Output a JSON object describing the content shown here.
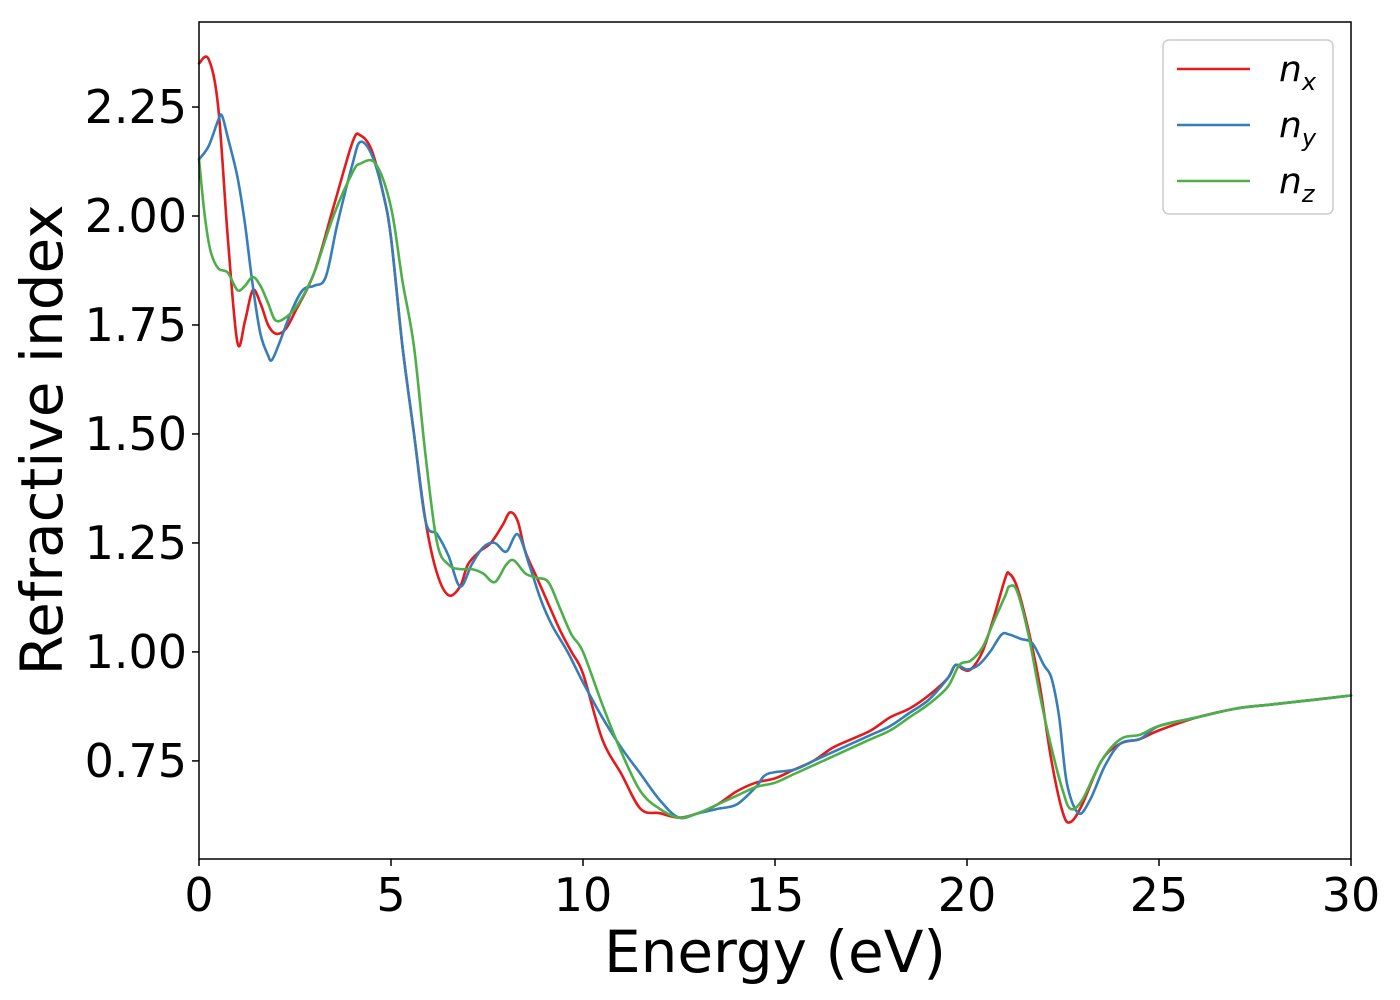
{
  "chart_data": {
    "type": "line",
    "xlabel": "Energy (eV)",
    "ylabel": "Refractive index",
    "xlim": [
      0,
      30
    ],
    "ylim": [
      0.525,
      2.445
    ],
    "xticks": [
      0,
      5,
      10,
      15,
      20,
      25,
      30
    ],
    "xtick_labels": [
      "0",
      "5",
      "10",
      "15",
      "20",
      "25",
      "30"
    ],
    "yticks": [
      0.75,
      1.0,
      1.25,
      1.5,
      1.75,
      2.0,
      2.25
    ],
    "ytick_labels": [
      "0.75",
      "1.00",
      "1.25",
      "1.50",
      "1.75",
      "2.00",
      "2.25"
    ],
    "grid": false,
    "legend_position": "top-right",
    "series": [
      {
        "name": "n",
        "subscript": "x",
        "color": "#e41a1c",
        "x": [
          0,
          0.25,
          0.5,
          0.75,
          1.0,
          1.2,
          1.4,
          1.6,
          1.8,
          2.0,
          2.25,
          2.5,
          3.0,
          3.5,
          4.0,
          4.2,
          4.5,
          4.8,
          5.0,
          5.3,
          5.6,
          5.9,
          6.2,
          6.5,
          6.8,
          7.0,
          7.3,
          7.6,
          7.9,
          8.1,
          8.3,
          8.5,
          8.8,
          9.1,
          9.4,
          9.7,
          10.0,
          10.5,
          11.0,
          11.5,
          12.0,
          12.5,
          13.0,
          13.5,
          14.0,
          14.5,
          15.0,
          15.5,
          16.0,
          16.5,
          17.0,
          17.5,
          18.0,
          18.5,
          19.0,
          19.5,
          19.7,
          19.9,
          20.1,
          20.4,
          20.7,
          21.0,
          21.1,
          21.3,
          21.6,
          21.9,
          22.2,
          22.5,
          22.7,
          23.0,
          23.5,
          24.0,
          24.5,
          25.0,
          26.0,
          27.0,
          28.0,
          29.0,
          30.0
        ],
        "values": [
          2.35,
          2.36,
          2.25,
          1.95,
          1.71,
          1.76,
          1.83,
          1.8,
          1.75,
          1.73,
          1.74,
          1.78,
          1.87,
          2.02,
          2.17,
          2.185,
          2.15,
          2.05,
          1.95,
          1.7,
          1.5,
          1.3,
          1.18,
          1.13,
          1.15,
          1.2,
          1.23,
          1.25,
          1.29,
          1.32,
          1.3,
          1.23,
          1.17,
          1.11,
          1.05,
          1.0,
          0.95,
          0.8,
          0.72,
          0.64,
          0.63,
          0.62,
          0.63,
          0.65,
          0.68,
          0.7,
          0.71,
          0.73,
          0.75,
          0.78,
          0.8,
          0.82,
          0.85,
          0.87,
          0.9,
          0.94,
          0.97,
          0.96,
          0.96,
          1.0,
          1.08,
          1.17,
          1.18,
          1.15,
          1.05,
          0.92,
          0.75,
          0.63,
          0.61,
          0.65,
          0.75,
          0.79,
          0.8,
          0.82,
          0.85,
          0.87,
          0.88,
          0.89,
          0.9
        ]
      },
      {
        "name": "n",
        "subscript": "y",
        "color": "#377eb8",
        "x": [
          0,
          0.25,
          0.5,
          0.6,
          0.75,
          1.0,
          1.2,
          1.4,
          1.6,
          1.8,
          1.9,
          2.1,
          2.4,
          2.7,
          3.0,
          3.3,
          3.6,
          4.0,
          4.2,
          4.5,
          4.8,
          5.0,
          5.3,
          5.6,
          5.9,
          6.2,
          6.5,
          6.8,
          7.1,
          7.4,
          7.7,
          8.0,
          8.3,
          8.6,
          8.9,
          9.2,
          9.6,
          10.0,
          10.5,
          11.0,
          11.5,
          12.0,
          12.5,
          13.0,
          13.5,
          14.0,
          14.5,
          14.8,
          15.5,
          16.0,
          16.5,
          17.0,
          17.5,
          18.0,
          18.5,
          19.0,
          19.5,
          19.7,
          20.0,
          20.3,
          20.6,
          20.9,
          21.1,
          21.4,
          21.7,
          22.0,
          22.2,
          22.4,
          22.6,
          22.9,
          23.2,
          23.6,
          24.0,
          24.5,
          25.0,
          26.0,
          27.0,
          28.0,
          29.0,
          30.0
        ],
        "values": [
          2.13,
          2.16,
          2.22,
          2.23,
          2.18,
          2.09,
          1.98,
          1.84,
          1.73,
          1.68,
          1.67,
          1.71,
          1.78,
          1.83,
          1.84,
          1.86,
          1.98,
          2.12,
          2.17,
          2.14,
          2.05,
          1.95,
          1.7,
          1.5,
          1.3,
          1.27,
          1.22,
          1.15,
          1.2,
          1.24,
          1.25,
          1.23,
          1.27,
          1.2,
          1.12,
          1.06,
          1.0,
          0.93,
          0.85,
          0.78,
          0.72,
          0.66,
          0.62,
          0.63,
          0.64,
          0.65,
          0.69,
          0.72,
          0.73,
          0.75,
          0.77,
          0.79,
          0.81,
          0.83,
          0.86,
          0.89,
          0.94,
          0.97,
          0.96,
          0.97,
          1.0,
          1.04,
          1.04,
          1.03,
          1.02,
          0.97,
          0.94,
          0.85,
          0.7,
          0.63,
          0.66,
          0.74,
          0.79,
          0.8,
          0.83,
          0.85,
          0.87,
          0.88,
          0.89,
          0.9
        ]
      },
      {
        "name": "n",
        "subscript": "z",
        "color": "#4daf4a",
        "x": [
          0,
          0.15,
          0.3,
          0.5,
          0.75,
          1.0,
          1.2,
          1.4,
          1.6,
          1.8,
          2.0,
          2.3,
          2.6,
          3.0,
          3.5,
          4.0,
          4.2,
          4.6,
          5.0,
          5.3,
          5.6,
          5.9,
          6.2,
          6.5,
          6.8,
          7.1,
          7.4,
          7.7,
          8.0,
          8.2,
          8.5,
          8.8,
          9.1,
          9.4,
          9.7,
          10.0,
          10.5,
          11.0,
          11.5,
          12.0,
          12.5,
          13.0,
          13.5,
          14.0,
          14.5,
          15.0,
          15.5,
          16.0,
          16.5,
          17.0,
          17.5,
          18.0,
          18.5,
          19.0,
          19.5,
          19.8,
          20.1,
          20.4,
          20.7,
          21.0,
          21.1,
          21.3,
          21.6,
          21.9,
          22.2,
          22.5,
          22.7,
          23.0,
          23.5,
          24.0,
          24.5,
          25.0,
          26.0,
          27.0,
          28.0,
          29.0,
          30.0
        ],
        "values": [
          2.13,
          2.0,
          1.92,
          1.88,
          1.87,
          1.83,
          1.84,
          1.86,
          1.84,
          1.8,
          1.76,
          1.77,
          1.8,
          1.87,
          2.0,
          2.1,
          2.12,
          2.12,
          2.02,
          1.85,
          1.7,
          1.45,
          1.25,
          1.2,
          1.19,
          1.19,
          1.18,
          1.16,
          1.2,
          1.21,
          1.18,
          1.17,
          1.16,
          1.1,
          1.04,
          1.0,
          0.88,
          0.77,
          0.68,
          0.64,
          0.62,
          0.63,
          0.65,
          0.67,
          0.69,
          0.7,
          0.72,
          0.74,
          0.76,
          0.78,
          0.8,
          0.82,
          0.85,
          0.88,
          0.92,
          0.97,
          0.98,
          1.01,
          1.07,
          1.13,
          1.15,
          1.14,
          1.04,
          0.9,
          0.78,
          0.68,
          0.64,
          0.66,
          0.75,
          0.8,
          0.81,
          0.83,
          0.85,
          0.87,
          0.88,
          0.89,
          0.9
        ]
      }
    ]
  }
}
